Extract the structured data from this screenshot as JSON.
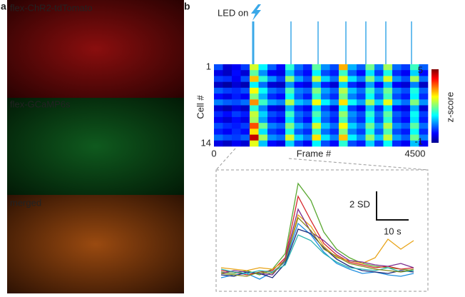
{
  "panel_a": {
    "letter": "a",
    "images": [
      {
        "label": "flex-ChR2-tdTomato",
        "color": "#e0312a"
      },
      {
        "label": "flex-GCaMP6s",
        "color": "#3bc45a"
      },
      {
        "label": "merged",
        "color": "#f39a2e"
      }
    ]
  },
  "panel_b": {
    "letter": "b",
    "led_label": "LED on",
    "led_frames": [
      825,
      1620,
      2190,
      2775,
      3195,
      3615,
      4155
    ],
    "heatmap": {
      "ylabel": "Cell #",
      "xlabel": "Frame #",
      "ylim": [
        1,
        14
      ],
      "xlim": [
        0,
        4500
      ],
      "colorbar_label": "z-score",
      "clim": [
        -1,
        5
      ],
      "matrix": [
        [
          0.2,
          -0.5,
          -0.3,
          0.1,
          2.5,
          1.2,
          0.3,
          -0.2,
          1.5,
          0.4,
          0.0,
          1.8,
          0.6,
          0.2,
          3.2,
          0.8,
          0.3,
          1.9,
          0.5,
          2.2,
          0.4,
          0.1,
          1.6,
          0.3
        ],
        [
          -0.4,
          -0.6,
          -0.2,
          -0.5,
          1.8,
          0.6,
          -0.3,
          -0.4,
          0.9,
          0.1,
          -0.2,
          1.2,
          0.2,
          -0.1,
          1.6,
          0.3,
          -0.2,
          1.1,
          0.1,
          1.4,
          0.0,
          -0.3,
          1.0,
          -0.2
        ],
        [
          0.1,
          0.0,
          -0.3,
          0.2,
          3.1,
          1.5,
          0.6,
          0.1,
          2.1,
          0.7,
          0.2,
          2.4,
          1.0,
          0.4,
          2.6,
          1.1,
          0.5,
          2.0,
          0.8,
          2.5,
          0.6,
          0.2,
          2.2,
          0.4
        ],
        [
          -0.6,
          -0.8,
          -0.5,
          -0.7,
          1.2,
          0.4,
          -0.5,
          -0.6,
          0.6,
          -0.2,
          -0.4,
          0.8,
          -0.1,
          -0.5,
          1.0,
          0.0,
          -0.4,
          0.7,
          -0.2,
          0.9,
          -0.3,
          -0.5,
          0.5,
          -0.6
        ],
        [
          0.3,
          0.1,
          0.0,
          0.2,
          2.7,
          1.3,
          0.4,
          0.2,
          1.7,
          0.5,
          0.3,
          2.0,
          0.7,
          0.3,
          2.3,
          0.9,
          0.4,
          1.6,
          0.6,
          1.9,
          0.5,
          0.2,
          1.4,
          0.3
        ],
        [
          -0.2,
          -0.4,
          -0.1,
          -0.3,
          2.0,
          0.8,
          0.0,
          -0.2,
          1.3,
          0.3,
          -0.1,
          1.5,
          0.4,
          0.0,
          1.9,
          0.5,
          0.1,
          1.3,
          0.3,
          1.6,
          0.2,
          -0.1,
          1.2,
          0.0
        ],
        [
          0.5,
          0.3,
          0.2,
          0.4,
          3.4,
          1.6,
          0.7,
          0.5,
          2.3,
          0.9,
          0.6,
          2.7,
          1.2,
          0.6,
          2.9,
          1.3,
          0.7,
          2.2,
          1.0,
          2.6,
          0.8,
          0.4,
          2.0,
          0.6
        ],
        [
          -0.5,
          -0.7,
          -0.4,
          -0.6,
          1.5,
          0.5,
          -0.4,
          -0.5,
          0.8,
          0.0,
          -0.3,
          1.0,
          0.1,
          -0.4,
          1.3,
          0.1,
          -0.3,
          0.9,
          0.0,
          1.1,
          -0.2,
          -0.4,
          0.8,
          -0.5
        ],
        [
          0.0,
          -0.2,
          0.1,
          -0.1,
          2.4,
          1.0,
          0.2,
          0.0,
          1.6,
          0.4,
          0.1,
          1.7,
          0.5,
          0.1,
          2.1,
          0.6,
          0.2,
          1.5,
          0.4,
          1.8,
          0.3,
          0.0,
          1.3,
          0.1
        ],
        [
          -0.3,
          -0.5,
          -0.2,
          -0.4,
          2.2,
          0.7,
          -0.1,
          -0.3,
          1.1,
          0.2,
          -0.2,
          1.3,
          0.3,
          -0.1,
          1.7,
          0.4,
          0.0,
          1.2,
          0.2,
          1.5,
          0.1,
          -0.2,
          1.1,
          -0.1
        ],
        [
          0.2,
          0.0,
          -0.1,
          0.1,
          3.8,
          1.9,
          0.5,
          0.3,
          2.0,
          0.8,
          0.4,
          2.5,
          0.9,
          0.4,
          2.7,
          1.0,
          0.5,
          1.9,
          0.7,
          2.3,
          0.6,
          0.3,
          1.8,
          0.4
        ],
        [
          -0.1,
          -0.3,
          0.0,
          -0.2,
          2.9,
          1.1,
          0.1,
          -0.1,
          1.4,
          0.3,
          0.0,
          1.6,
          0.4,
          0.0,
          2.0,
          0.5,
          0.1,
          1.4,
          0.3,
          1.7,
          0.2,
          -0.1,
          1.3,
          0.0
        ],
        [
          0.4,
          0.2,
          0.1,
          0.3,
          4.6,
          2.2,
          0.6,
          0.4,
          2.5,
          1.0,
          0.5,
          2.9,
          1.1,
          0.5,
          3.1,
          1.2,
          0.6,
          2.1,
          0.9,
          2.4,
          0.7,
          0.3,
          1.9,
          0.5
        ],
        [
          -0.4,
          -0.6,
          -0.3,
          -0.5,
          2.6,
          0.9,
          -0.2,
          -0.4,
          1.0,
          0.1,
          -0.3,
          1.2,
          0.2,
          -0.2,
          1.5,
          0.2,
          -0.1,
          1.0,
          0.1,
          1.3,
          0.0,
          -0.3,
          0.9,
          -0.3
        ]
      ]
    },
    "zoom": {
      "sd_label": "2 SD",
      "time_label": "10 s",
      "t": [
        0,
        4,
        8,
        12,
        16,
        20,
        24,
        28,
        32,
        36,
        40,
        44,
        48,
        52,
        56,
        60
      ],
      "series": [
        {
          "color": "#5aa832",
          "values": [
            0.2,
            0.1,
            0.3,
            0.0,
            0.4,
            1.5,
            6.4,
            5.2,
            3.0,
            1.8,
            1.2,
            0.8,
            0.6,
            0.5,
            0.4,
            0.3
          ]
        },
        {
          "color": "#d6262b",
          "values": [
            0.3,
            0.2,
            0.0,
            0.2,
            0.3,
            1.2,
            5.5,
            3.8,
            2.2,
            1.4,
            0.9,
            0.7,
            0.5,
            0.6,
            0.4,
            0.5
          ]
        },
        {
          "color": "#e8a317",
          "values": [
            0.5,
            0.4,
            0.3,
            0.5,
            0.4,
            1.0,
            4.2,
            3.4,
            2.0,
            1.2,
            1.0,
            0.8,
            1.2,
            2.5,
            1.8,
            2.4
          ]
        },
        {
          "color": "#1f8fe0",
          "values": [
            -0.2,
            0.0,
            0.1,
            -0.3,
            0.2,
            0.9,
            3.6,
            2.8,
            1.6,
            0.8,
            0.4,
            0.1,
            0.2,
            0.0,
            -0.1,
            0.1
          ]
        },
        {
          "color": "#7b2d8e",
          "values": [
            0.1,
            0.3,
            0.2,
            0.1,
            0.0,
            1.1,
            4.6,
            3.0,
            2.4,
            1.6,
            1.0,
            0.9,
            0.7,
            0.6,
            0.8,
            0.5
          ]
        },
        {
          "color": "#1c2a7a",
          "values": [
            0.0,
            -0.1,
            0.2,
            0.1,
            -0.2,
            0.8,
            3.2,
            2.9,
            1.9,
            1.1,
            0.6,
            0.3,
            0.2,
            0.1,
            0.3,
            0.2
          ]
        },
        {
          "color": "#2bb3b0",
          "values": [
            0.4,
            0.2,
            0.1,
            0.3,
            0.2,
            0.7,
            2.8,
            2.4,
            1.5,
            0.9,
            0.5,
            0.4,
            0.3,
            0.5,
            0.2,
            0.3
          ]
        },
        {
          "color": "#8a8a1e",
          "values": [
            0.1,
            0.0,
            -0.1,
            0.2,
            0.1,
            1.0,
            4.0,
            3.1,
            1.8,
            1.3,
            0.8,
            0.6,
            0.4,
            0.3,
            0.2,
            0.4
          ]
        }
      ]
    }
  }
}
